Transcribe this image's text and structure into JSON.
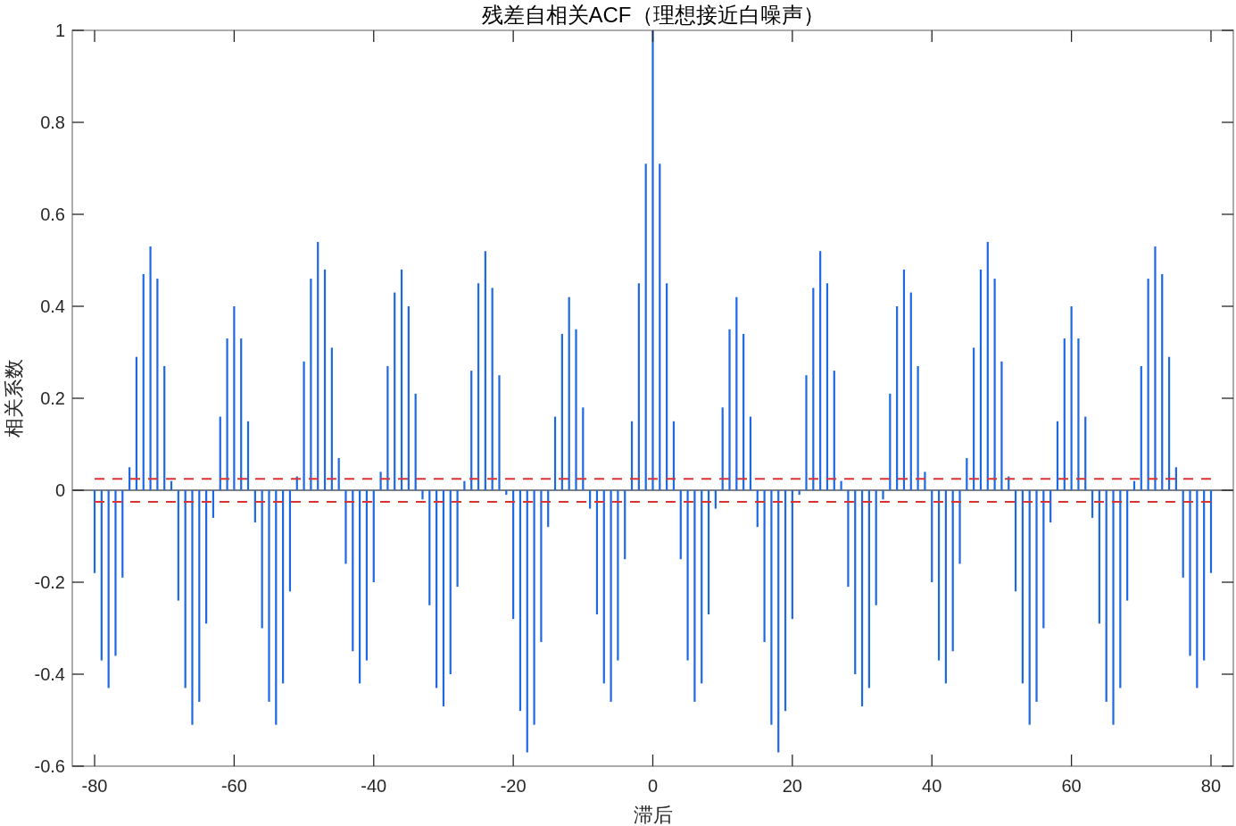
{
  "chart_data": {
    "type": "bar",
    "title": "残差自相关ACF（理想接近白噪声）",
    "xlabel": "滞后",
    "ylabel": "相关系数",
    "x": [
      -80,
      -79,
      -78,
      -77,
      -76,
      -75,
      -74,
      -73,
      -72,
      -71,
      -70,
      -69,
      -68,
      -67,
      -66,
      -65,
      -64,
      -63,
      -62,
      -61,
      -60,
      -59,
      -58,
      -57,
      -56,
      -55,
      -54,
      -53,
      -52,
      -51,
      -50,
      -49,
      -48,
      -47,
      -46,
      -45,
      -44,
      -43,
      -42,
      -41,
      -40,
      -39,
      -38,
      -37,
      -36,
      -35,
      -34,
      -33,
      -32,
      -31,
      -30,
      -29,
      -28,
      -27,
      -26,
      -25,
      -24,
      -23,
      -22,
      -21,
      -20,
      -19,
      -18,
      -17,
      -16,
      -15,
      -14,
      -13,
      -12,
      -11,
      -10,
      -9,
      -8,
      -7,
      -6,
      -5,
      -4,
      -3,
      -2,
      -1,
      0,
      1,
      2,
      3,
      4,
      5,
      6,
      7,
      8,
      9,
      10,
      11,
      12,
      13,
      14,
      15,
      16,
      17,
      18,
      19,
      20,
      21,
      22,
      23,
      24,
      25,
      26,
      27,
      28,
      29,
      30,
      31,
      32,
      33,
      34,
      35,
      36,
      37,
      38,
      39,
      40,
      41,
      42,
      43,
      44,
      45,
      46,
      47,
      48,
      49,
      50,
      51,
      52,
      53,
      54,
      55,
      56,
      57,
      58,
      59,
      60,
      61,
      62,
      63,
      64,
      65,
      66,
      67,
      68,
      69,
      70,
      71,
      72,
      73,
      74,
      75,
      76,
      77,
      78,
      79,
      80
    ],
    "values": [
      -0.18,
      -0.37,
      -0.43,
      -0.36,
      -0.19,
      0.05,
      0.29,
      0.47,
      0.53,
      0.46,
      0.27,
      0.02,
      -0.24,
      -0.43,
      -0.51,
      -0.46,
      -0.29,
      -0.06,
      0.16,
      0.33,
      0.4,
      0.33,
      0.15,
      -0.07,
      -0.3,
      -0.46,
      -0.51,
      -0.42,
      -0.22,
      0.03,
      0.28,
      0.46,
      0.54,
      0.48,
      0.31,
      0.07,
      -0.16,
      -0.35,
      -0.42,
      -0.37,
      -0.2,
      0.04,
      0.27,
      0.43,
      0.48,
      0.4,
      0.21,
      -0.02,
      -0.25,
      -0.43,
      -0.47,
      -0.4,
      -0.21,
      0.02,
      0.26,
      0.45,
      0.52,
      0.44,
      0.25,
      -0.01,
      -0.28,
      -0.48,
      -0.57,
      -0.51,
      -0.33,
      -0.08,
      0.16,
      0.34,
      0.42,
      0.35,
      0.18,
      -0.04,
      -0.27,
      -0.42,
      -0.46,
      -0.37,
      -0.15,
      0.15,
      0.45,
      0.71,
      1,
      0.71,
      0.45,
      0.15,
      -0.15,
      -0.37,
      -0.46,
      -0.42,
      -0.27,
      -0.04,
      0.18,
      0.35,
      0.42,
      0.34,
      0.16,
      -0.08,
      -0.33,
      -0.51,
      -0.57,
      -0.48,
      -0.28,
      -0.01,
      0.25,
      0.44,
      0.52,
      0.45,
      0.26,
      0.02,
      -0.21,
      -0.4,
      -0.47,
      -0.43,
      -0.25,
      -0.02,
      0.21,
      0.4,
      0.48,
      0.43,
      0.27,
      0.04,
      -0.2,
      -0.37,
      -0.42,
      -0.35,
      -0.16,
      0.07,
      0.31,
      0.48,
      0.54,
      0.46,
      0.28,
      0.03,
      -0.22,
      -0.42,
      -0.51,
      -0.46,
      -0.3,
      -0.07,
      0.15,
      0.33,
      0.4,
      0.33,
      0.16,
      -0.06,
      -0.29,
      -0.46,
      -0.51,
      -0.43,
      -0.24,
      0.02,
      0.27,
      0.46,
      0.53,
      0.47,
      0.29,
      0.05,
      -0.19,
      -0.36,
      -0.43,
      -0.37,
      -0.18
    ],
    "color": "#1d68e3",
    "xlim": [
      -83.2,
      83.2
    ],
    "xticks": [
      -80,
      -60,
      -40,
      -20,
      0,
      20,
      40,
      60,
      80
    ],
    "ylim": [
      -0.6,
      1
    ],
    "yticks": [
      -0.6,
      -0.4,
      -0.2,
      0,
      0.2,
      0.4,
      0.6,
      0.8,
      1
    ],
    "ref_lines": [
      {
        "axis": "y",
        "value": 0.025,
        "color": "#d93333",
        "line_style": "dashed"
      },
      {
        "axis": "y",
        "value": -0.025,
        "color": "#d93333",
        "line_style": "dashed"
      }
    ]
  }
}
